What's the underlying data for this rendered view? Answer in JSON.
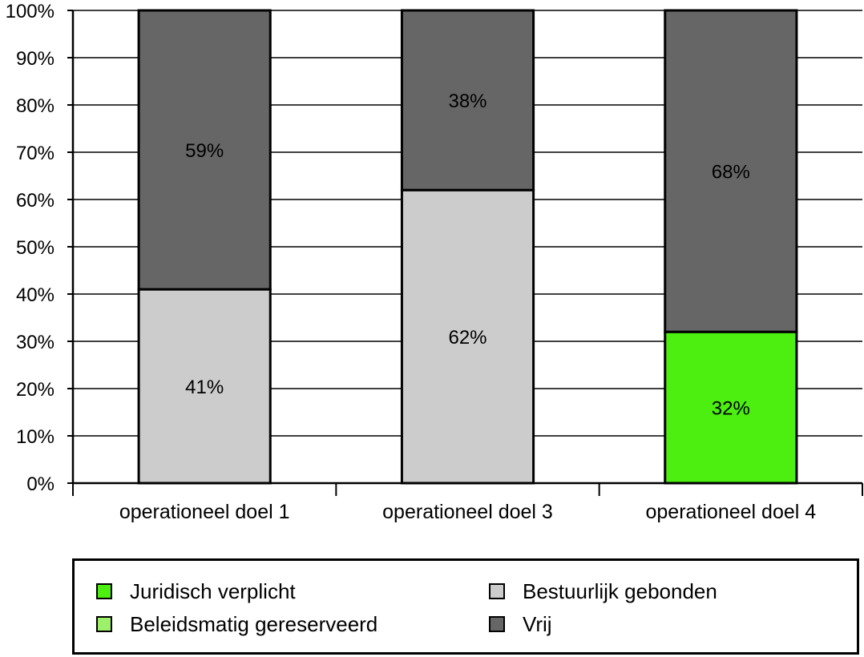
{
  "chart_data": {
    "type": "bar",
    "stacked": true,
    "categories": [
      "operationeel doel 1",
      "operationeel doel 3",
      "operationeel doel 4"
    ],
    "series": [
      {
        "name": "Juridisch verplicht",
        "color": "#4cef10",
        "values": [
          0,
          0,
          32
        ],
        "labels": [
          "",
          "",
          "32%"
        ]
      },
      {
        "name": "Beleidsmatig gereserveerd",
        "color": "#9cf06a",
        "values": [
          0,
          0,
          0
        ],
        "labels": [
          "",
          "",
          ""
        ]
      },
      {
        "name": "Bestuurlijk gebonden",
        "color": "#cccccc",
        "values": [
          41,
          62,
          0
        ],
        "labels": [
          "41%",
          "62%",
          ""
        ]
      },
      {
        "name": "Vrij",
        "color": "#666666",
        "values": [
          59,
          38,
          68
        ],
        "labels": [
          "59%",
          "38%",
          "68%"
        ]
      }
    ],
    "ylim": [
      0,
      100
    ],
    "yticks": [
      "0%",
      "10%",
      "20%",
      "30%",
      "40%",
      "50%",
      "60%",
      "70%",
      "80%",
      "90%",
      "100%"
    ],
    "grid": true,
    "legend_position": "bottom",
    "xlabel": "",
    "ylabel": "",
    "title": ""
  },
  "legend": {
    "items": [
      {
        "label": "Juridisch verplicht",
        "color": "#4cef10"
      },
      {
        "label": "Bestuurlijk gebonden",
        "color": "#cccccc"
      },
      {
        "label": "Beleidsmatig gereserveerd",
        "color": "#9cf06a"
      },
      {
        "label": "Vrij",
        "color": "#666666"
      }
    ]
  }
}
